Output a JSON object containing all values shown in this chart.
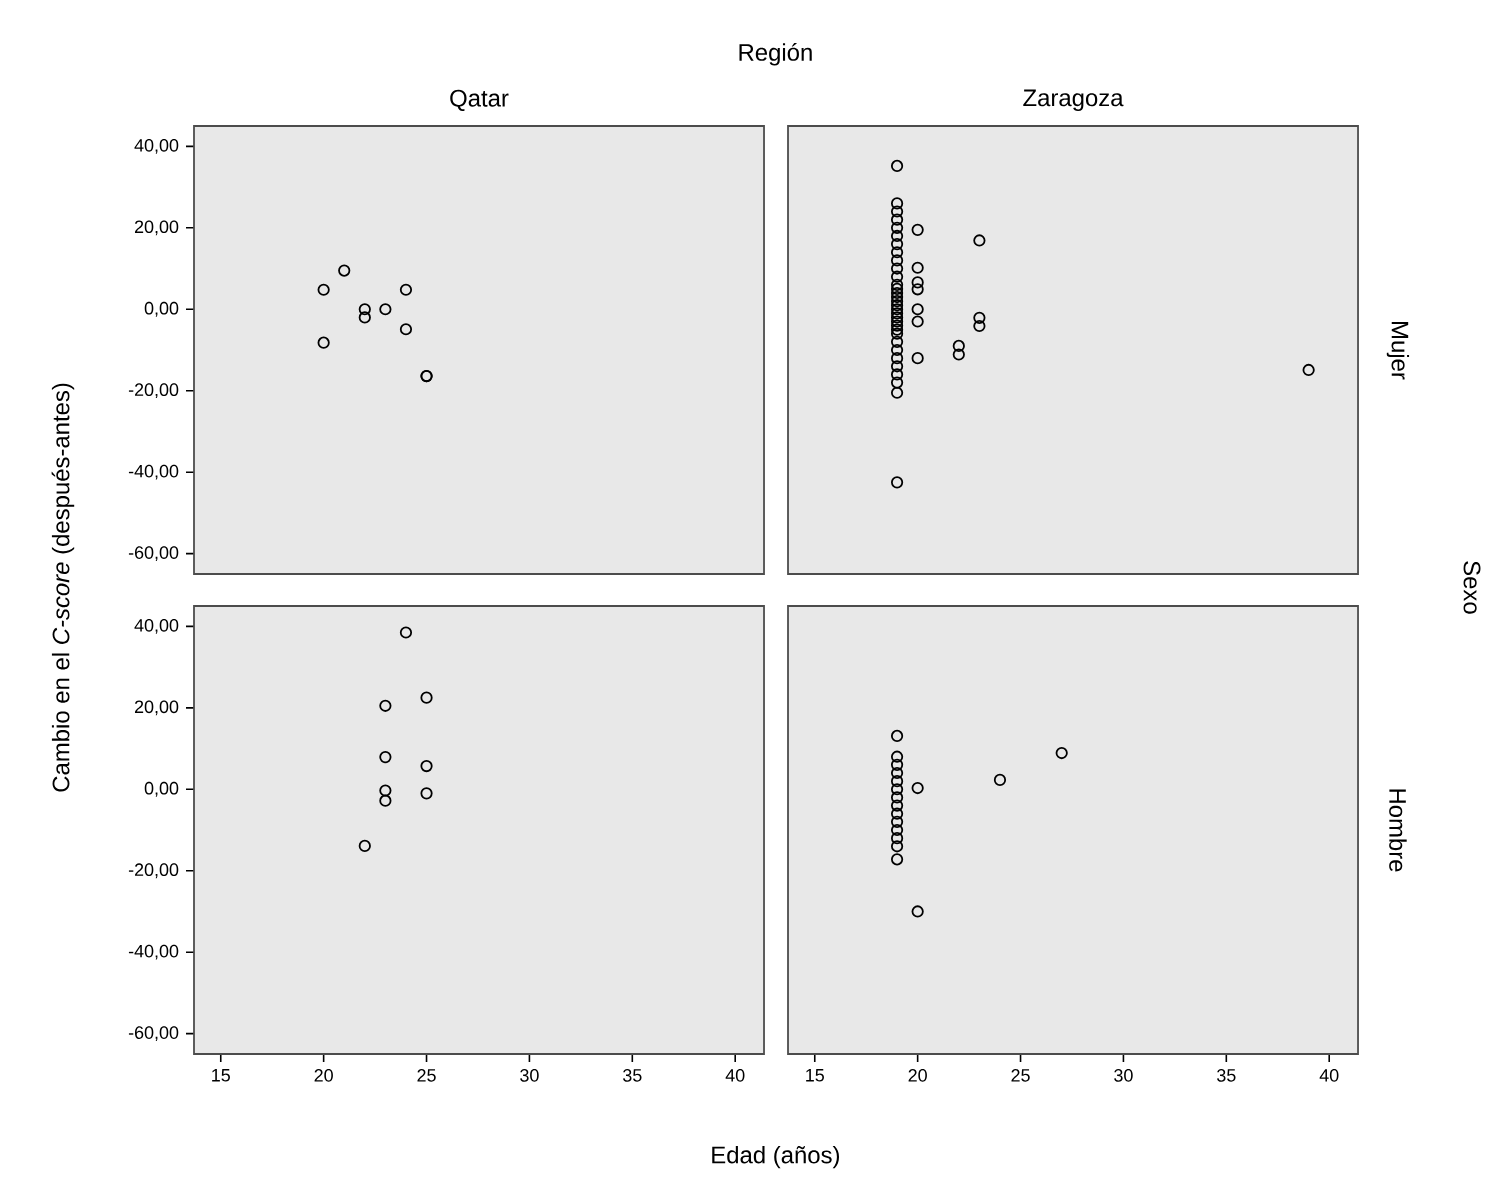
{
  "chart_data": [
    {
      "type": "scatter",
      "title": "Qatar",
      "ylabel": "Cambio en el *C-score* (después-antes)",
      "annotations": [
        "Región"
      ],
      "marker": "circle",
      "color": "#000000",
      "tick_labels": "y",
      "xlim": [
        13.7,
        41.4
      ],
      "ylim": [
        -65,
        45
      ],
      "yticks": [
        {
          "value": -60,
          "label": "-60,00"
        },
        {
          "value": -40,
          "label": "-40,00"
        },
        {
          "value": -20,
          "label": "-20,00"
        },
        {
          "value": 0,
          "label": "0,00"
        },
        {
          "value": 20,
          "label": "20,00"
        },
        {
          "value": 40,
          "label": "40,00"
        }
      ],
      "x": [
        20,
        21,
        20,
        22,
        22,
        23,
        24,
        24,
        25,
        25
      ],
      "values": [
        4.8,
        9.5,
        -8.2,
        0,
        -2,
        0,
        4.8,
        -4.9,
        -16.4,
        -16.4
      ]
    },
    {
      "type": "scatter",
      "title": "Zaragoza",
      "y2label": "Mujer",
      "annotations": [
        "Sexo"
      ],
      "marker": "circle",
      "color": "#000000",
      "tick_labels": false,
      "xlim": [
        13.7,
        41.4
      ],
      "ylim": [
        -65,
        45
      ],
      "x": [
        19,
        19,
        19,
        19,
        19,
        19,
        19,
        19,
        19,
        19,
        19,
        19,
        19,
        19,
        19,
        19,
        19,
        19,
        19,
        19,
        19,
        19,
        19,
        19,
        19,
        19,
        19,
        19,
        19,
        19,
        19,
        19,
        20,
        20,
        20,
        20,
        20,
        20,
        20,
        22,
        22,
        23,
        23,
        23,
        39
      ],
      "values": [
        35.2,
        26,
        24,
        22,
        20,
        18,
        16,
        14,
        12,
        10,
        8,
        6,
        5,
        4,
        3,
        2,
        1,
        0,
        -1,
        -2,
        -3,
        -4,
        -5,
        -6,
        -8,
        -10,
        -12,
        -14,
        -16,
        -18,
        -20.5,
        -42.5,
        19.5,
        10.2,
        6.6,
        4.9,
        0,
        -3,
        -12,
        -9,
        -11.1,
        16.9,
        -2.1,
        -4.1,
        -14.9
      ]
    },
    {
      "type": "scatter",
      "xlabel": "Edad (años)",
      "marker": "circle",
      "color": "#000000",
      "xlim": [
        13.7,
        41.4
      ],
      "ylim": [
        -65,
        45
      ],
      "xticks": [
        15,
        20,
        25,
        30,
        35,
        40
      ],
      "yticks": [
        {
          "value": -60,
          "label": "-60,00"
        },
        {
          "value": -40,
          "label": "-40,00"
        },
        {
          "value": -20,
          "label": "-20,00"
        },
        {
          "value": 0,
          "label": "0,00"
        },
        {
          "value": 20,
          "label": "20,00"
        },
        {
          "value": 40,
          "label": "40,00"
        }
      ],
      "x": [
        24,
        23,
        25,
        23,
        25,
        23,
        23,
        25,
        22
      ],
      "values": [
        38.5,
        20.5,
        22.5,
        7.9,
        5.7,
        -0.3,
        -2.8,
        -1,
        -13.9
      ]
    },
    {
      "type": "scatter",
      "y2label": "Hombre",
      "marker": "circle",
      "color": "#000000",
      "tick_labels": "x",
      "xlim": [
        13.7,
        41.4
      ],
      "ylim": [
        -65,
        45
      ],
      "xticks": [
        15,
        20,
        25,
        30,
        35,
        40
      ],
      "x": [
        19,
        19,
        19,
        19,
        19,
        19,
        19,
        19,
        19,
        19,
        19,
        19,
        19,
        19,
        20,
        20,
        24,
        27
      ],
      "values": [
        13.1,
        8,
        6,
        4,
        2,
        0,
        -2,
        -4,
        -6,
        -8,
        -10,
        -12,
        -14,
        -17.2,
        0.3,
        -30,
        2.3,
        8.9
      ]
    }
  ]
}
